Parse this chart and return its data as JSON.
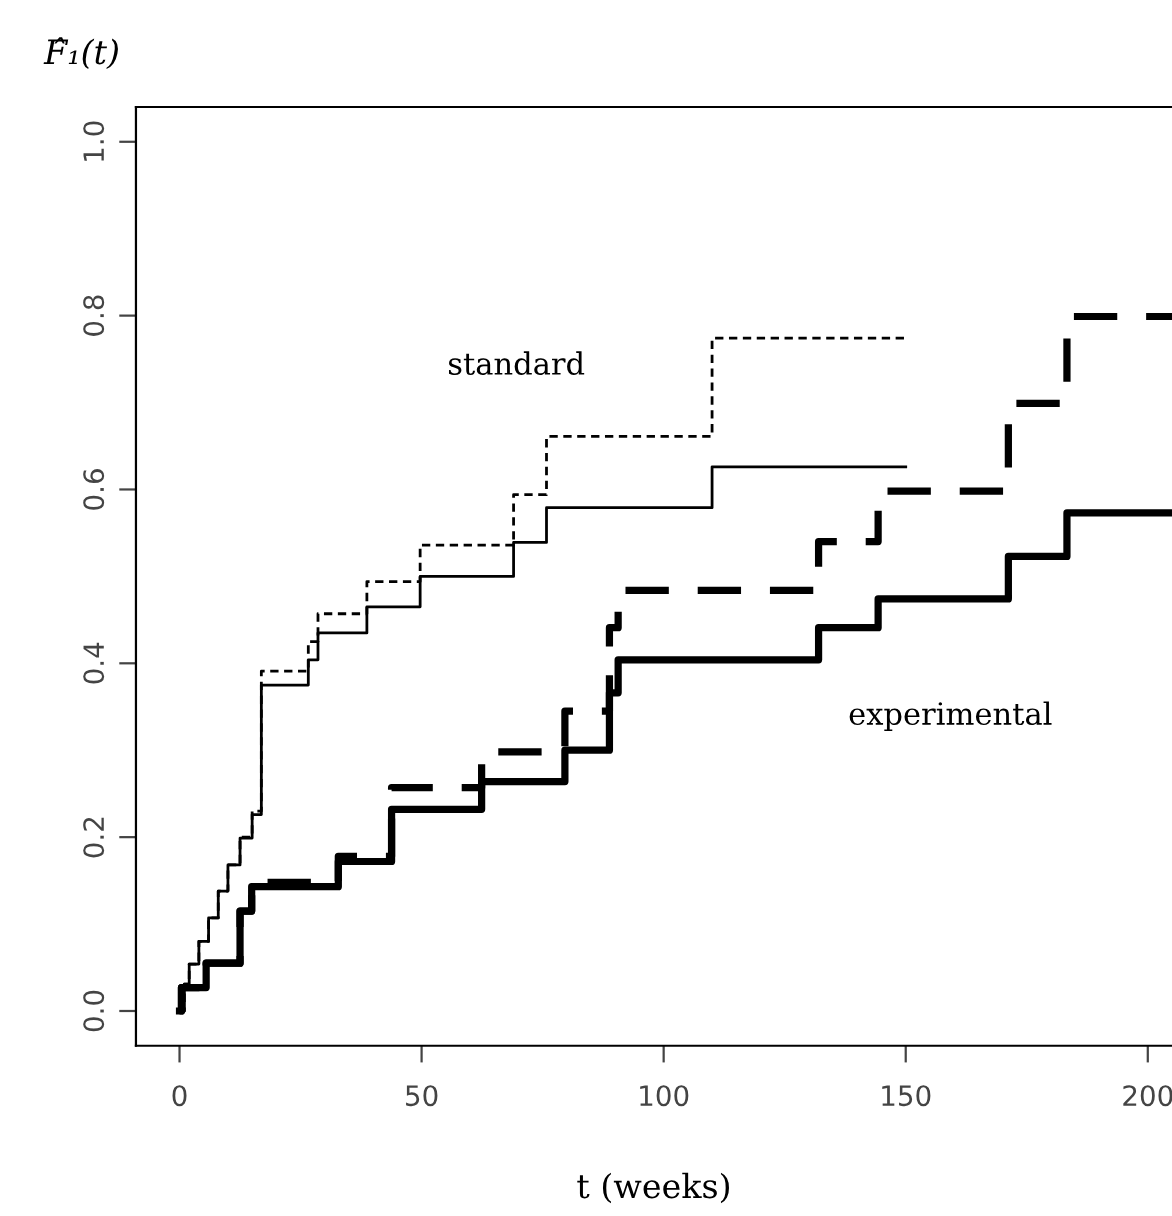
{
  "chart_data": {
    "type": "step",
    "xlabel": "t (weeks)",
    "ylabel": "F̂₁(t)",
    "xlim": [
      -9,
      205
    ],
    "ylim": [
      -0.04,
      1.04
    ],
    "xticks": [
      0,
      50,
      100,
      150,
      200
    ],
    "yticks": [
      {
        "value": 0,
        "label": "0.0"
      },
      {
        "value": 0.2,
        "label": "0.2"
      },
      {
        "value": 0.4,
        "label": "0.4"
      },
      {
        "value": 0.6,
        "label": "0.6"
      },
      {
        "value": 0.8,
        "label": "0.8"
      },
      {
        "value": 1,
        "label": "1.0"
      }
    ],
    "grid": false,
    "legend": false,
    "series": [
      {
        "color": "#000000",
        "line_style": "solid",
        "x": [
          0,
          1,
          2,
          4,
          6,
          8,
          10,
          12.5,
          15,
          16.9,
          26.6,
          28.6,
          38.7,
          49.7,
          69,
          75.8,
          110,
          150
        ],
        "values": [
          0,
          0.031,
          0.054,
          0.08,
          0.107,
          0.138,
          0.168,
          0.199,
          0.226,
          0.375,
          0.404,
          0.435,
          0.465,
          0.5,
          0.539,
          0.579,
          0.626,
          0.626
        ]
      },
      {
        "color": "#000000",
        "line_style": "dashed",
        "x": [
          0,
          1,
          2,
          4,
          6,
          8,
          10,
          12.5,
          15,
          16.9,
          26.6,
          28.6,
          38.7,
          49.7,
          69,
          75.8,
          110,
          150
        ],
        "values": [
          0,
          0.031,
          0.054,
          0.08,
          0.107,
          0.138,
          0.168,
          0.2,
          0.23,
          0.391,
          0.425,
          0.457,
          0.494,
          0.536,
          0.594,
          0.661,
          0.774,
          0.774
        ]
      },
      {
        "color": "#000000",
        "line_style": "solid",
        "x": [
          0,
          0.4,
          5.5,
          12.5,
          14.9,
          32.8,
          43.8,
          62.4,
          79.6,
          88.8,
          90.6,
          132,
          144.3,
          171.2,
          183.3,
          205
        ],
        "values": [
          0,
          0.027,
          0.055,
          0.115,
          0.143,
          0.172,
          0.232,
          0.264,
          0.3,
          0.366,
          0.404,
          0.441,
          0.474,
          0.523,
          0.573,
          0.573
        ]
      },
      {
        "color": "#000000",
        "line_style": "dashed",
        "x": [
          0,
          0.4,
          5.5,
          12.5,
          14.9,
          32.8,
          43.8,
          62.4,
          79.6,
          88.8,
          90.6,
          132,
          144.3,
          171.2,
          183.3,
          205
        ],
        "values": [
          0,
          0.027,
          0.055,
          0.115,
          0.148,
          0.178,
          0.257,
          0.298,
          0.345,
          0.441,
          0.484,
          0.54,
          0.598,
          0.699,
          0.799,
          0.799
        ]
      }
    ],
    "annotations": [
      "standard",
      "experimental"
    ]
  }
}
